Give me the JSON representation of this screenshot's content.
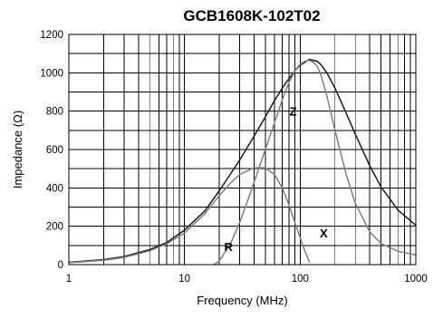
{
  "chart_data": {
    "type": "line",
    "title": "GCB1608K-102T02",
    "xlabel": "Frequency (MHz)",
    "ylabel": "Impedance (Ω)",
    "x_scale": "log",
    "xlim": [
      1,
      1000
    ],
    "ylim": [
      0,
      1200
    ],
    "x_ticks": [
      1,
      10,
      100,
      1000
    ],
    "x_tick_labels": [
      "1",
      "10",
      "100",
      "1000"
    ],
    "y_ticks": [
      0,
      200,
      400,
      600,
      800,
      1000,
      1200
    ],
    "y_tick_labels": [
      "0",
      "200",
      "400",
      "600",
      "800",
      "1000",
      "1200"
    ],
    "grid": true,
    "legend": "none",
    "series": [
      {
        "name": "Z",
        "color": "#1a1a1a",
        "label_at": {
          "x": 87,
          "y": 800
        },
        "x": [
          1,
          2,
          3,
          5,
          7,
          10,
          15,
          20,
          30,
          40,
          50,
          60,
          70,
          80,
          90,
          100,
          110,
          120,
          130,
          140,
          150,
          170,
          200,
          250,
          300,
          400,
          500,
          700,
          1000
        ],
        "y": [
          12,
          26,
          42,
          78,
          115,
          180,
          280,
          385,
          545,
          670,
          770,
          855,
          920,
          970,
          1010,
          1040,
          1055,
          1070,
          1065,
          1060,
          1045,
          1000,
          920,
          790,
          680,
          515,
          405,
          285,
          205
        ]
      },
      {
        "name": "X",
        "color": "#7f7f7f",
        "label_at": {
          "x": 160,
          "y": 165
        },
        "x": [
          18,
          20,
          25,
          30,
          35,
          40,
          50,
          60,
          70,
          80,
          90,
          100,
          110,
          120,
          130,
          140,
          150,
          170,
          200,
          250,
          300,
          400,
          500,
          700,
          1000
        ],
        "y": [
          0,
          20,
          110,
          220,
          330,
          430,
          600,
          740,
          860,
          950,
          1010,
          1045,
          1060,
          1065,
          1055,
          1035,
          995,
          880,
          700,
          470,
          320,
          170,
          110,
          70,
          50
        ]
      },
      {
        "name": "R",
        "color": "#7f7f7f",
        "label_at": {
          "x": 24,
          "y": 95
        },
        "x": [
          1,
          2,
          3,
          5,
          7,
          10,
          15,
          20,
          25,
          30,
          40,
          50,
          60,
          70,
          80,
          90,
          100,
          110,
          120
        ],
        "y": [
          10,
          22,
          38,
          72,
          108,
          165,
          265,
          360,
          425,
          470,
          505,
          505,
          470,
          400,
          310,
          220,
          140,
          70,
          15
        ]
      }
    ]
  }
}
